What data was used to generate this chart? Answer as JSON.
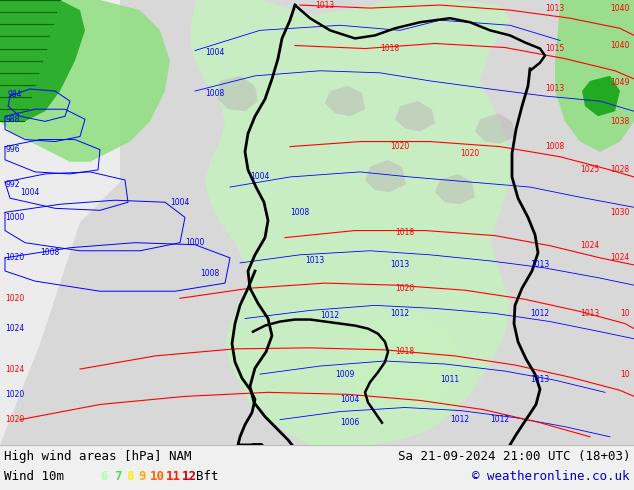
{
  "title_left": "High wind areas [hPa] NAM",
  "title_right": "Sa 21-09-2024 21:00 UTC (18+03)",
  "subtitle_left": "Wind 10m",
  "copyright": "© weatheronline.co.uk",
  "legend_numbers": [
    "6",
    "7",
    "8",
    "9",
    "10",
    "11",
    "12"
  ],
  "legend_colors": [
    "#aaffaa",
    "#55dd55",
    "#ffee00",
    "#ffaa00",
    "#ff6600",
    "#ff2200",
    "#cc0000"
  ],
  "legend_suffix": "Bft",
  "bg_color": "#f0f0f0",
  "land_color": "#d8d8d8",
  "ocean_color": "#f0f0f0",
  "bottom_bar_color": "#e8e8e8",
  "text_color": "#000000",
  "font_size_main": 9,
  "font_size_legend": 9,
  "figsize": [
    6.34,
    4.9
  ],
  "dpi": 100,
  "green_light": "#c8f0c0",
  "green_mid": "#90e080",
  "green_dark": "#22aa22"
}
